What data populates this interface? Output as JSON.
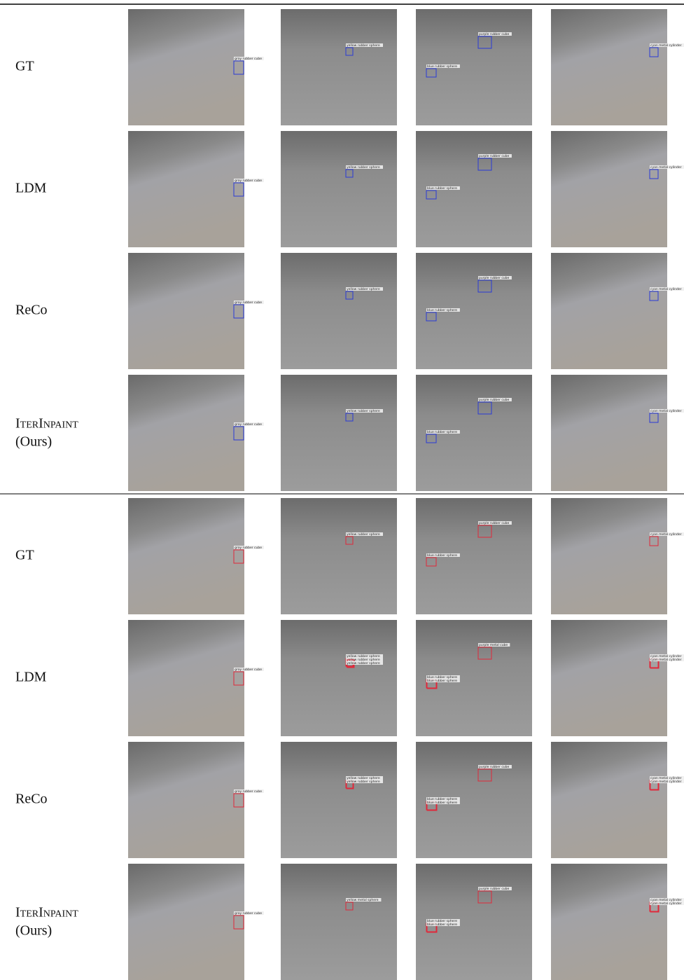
{
  "figure": {
    "sections": [
      {
        "box_color": "#2a3ad6",
        "rows": [
          {
            "label": "GT",
            "images": [
              [
                "gray rubber cube"
              ],
              [
                "yellow rubber sphere"
              ],
              [
                "purple rubber cube",
                "blue rubber sphere"
              ],
              [
                "cyan metal cylinder"
              ]
            ]
          },
          {
            "label": "LDM",
            "images": [
              [
                "gray rubber cube"
              ],
              [
                "yellow rubber sphere"
              ],
              [
                "purple rubber cube",
                "blue rubber sphere"
              ],
              [
                "cyan metal cylinder"
              ]
            ]
          },
          {
            "label": "ReCo",
            "images": [
              [
                "gray rubber cube"
              ],
              [
                "yellow rubber sphere"
              ],
              [
                "purple rubber cube",
                "blue rubber sphere"
              ],
              [
                "cyan metal cylinder"
              ]
            ]
          },
          {
            "label": "IterInpaint",
            "note": "(Ours)",
            "images": [
              [
                "gray rubber cube"
              ],
              [
                "yellow rubber sphere"
              ],
              [
                "purple rubber cube",
                "blue rubber sphere"
              ],
              [
                "cyan metal cylinder"
              ]
            ]
          }
        ]
      },
      {
        "box_color": "#e0283a",
        "rows": [
          {
            "label": "GT",
            "images": [
              [
                "gray rubber cube"
              ],
              [
                "yellow rubber sphere"
              ],
              [
                "purple rubber cube",
                "blue rubber sphere"
              ],
              [
                "cyan metal cylinder"
              ]
            ]
          },
          {
            "label": "LDM",
            "images": [
              [
                "gray rubber cube"
              ],
              [
                "yellow rubber sphere",
                "yellow rubber sphere",
                "yellow rubber sphere"
              ],
              [
                "purple metal cube",
                "blue rubber sphere",
                "blue rubber sphere"
              ],
              [
                "cyan metal cylinder",
                "cyan metal cylinder"
              ]
            ]
          },
          {
            "label": "ReCo",
            "images": [
              [
                "gray rubber cube"
              ],
              [
                "yellow rubber sphere",
                "yellow rubber sphere"
              ],
              [
                "purple rubber cube",
                "blue rubber sphere",
                "blue rubber sphere"
              ],
              [
                "cyan metal cylinder",
                "cyan metal cylinder"
              ]
            ]
          },
          {
            "label": "IterInpaint",
            "note": "(Ours)",
            "images": [
              [
                "gray rubber cube"
              ],
              [
                "yellow metal sphere"
              ],
              [
                "purple rubber cube",
                "blue rubber sphere",
                "blue rubber sphere"
              ],
              [
                "cyan metal cylinder",
                "cyan metal cylinder"
              ]
            ]
          }
        ]
      }
    ]
  }
}
